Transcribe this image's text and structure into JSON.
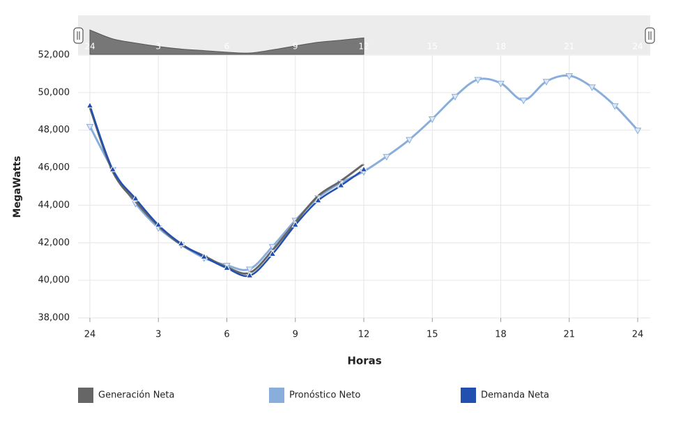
{
  "chart_data": {
    "type": "line",
    "xlabel": "Horas",
    "ylabel": "MegaWatts",
    "x": [
      0,
      1,
      2,
      3,
      4,
      5,
      6,
      7,
      8,
      9,
      10,
      11,
      12,
      13,
      14,
      15,
      16,
      17,
      18,
      19,
      20,
      21,
      22,
      23,
      24
    ],
    "series": [
      {
        "name": "Generación Neta",
        "color": "#666666",
        "marker": "none",
        "values": [
          49200,
          45800,
          44200,
          42900,
          41900,
          41300,
          40700,
          40400,
          41600,
          43100,
          44500,
          45300,
          46200,
          null,
          null,
          null,
          null,
          null,
          null,
          null,
          null,
          null,
          null,
          null,
          null
        ]
      },
      {
        "name": "Pronóstico Neto",
        "color": "#8aaedc",
        "marker": "down",
        "values": [
          48200,
          45900,
          44100,
          42800,
          41900,
          41200,
          40800,
          40600,
          41800,
          43200,
          44400,
          45200,
          45800,
          46600,
          47500,
          48600,
          49800,
          50700,
          50500,
          49600,
          50600,
          50900,
          50300,
          49300,
          48000
        ]
      },
      {
        "name": "Demanda Neta",
        "color": "#2150b0",
        "marker": "up",
        "values": [
          49300,
          45900,
          44350,
          42950,
          41950,
          41250,
          40650,
          40250,
          41400,
          42950,
          44250,
          45050,
          45900,
          null,
          null,
          null,
          null,
          null,
          null,
          null,
          null,
          null,
          null,
          null,
          null
        ]
      }
    ],
    "xlim": [
      0,
      24
    ],
    "xticks": [
      {
        "value": 0,
        "label": "24"
      },
      3,
      6,
      9,
      12,
      15,
      18,
      21,
      24
    ],
    "ylim": [
      38000,
      52000
    ],
    "yticks": [
      {
        "value": 38000,
        "label": "38,000"
      },
      {
        "value": 40000,
        "label": "40,000"
      },
      {
        "value": 42000,
        "label": "42,000"
      },
      {
        "value": 44000,
        "label": "44,000"
      },
      {
        "value": 46000,
        "label": "46,000"
      },
      {
        "value": 48000,
        "label": "48,000"
      },
      {
        "value": 50000,
        "label": "50,000"
      },
      {
        "value": 52000,
        "label": "52,000"
      }
    ],
    "grid": true
  }
}
